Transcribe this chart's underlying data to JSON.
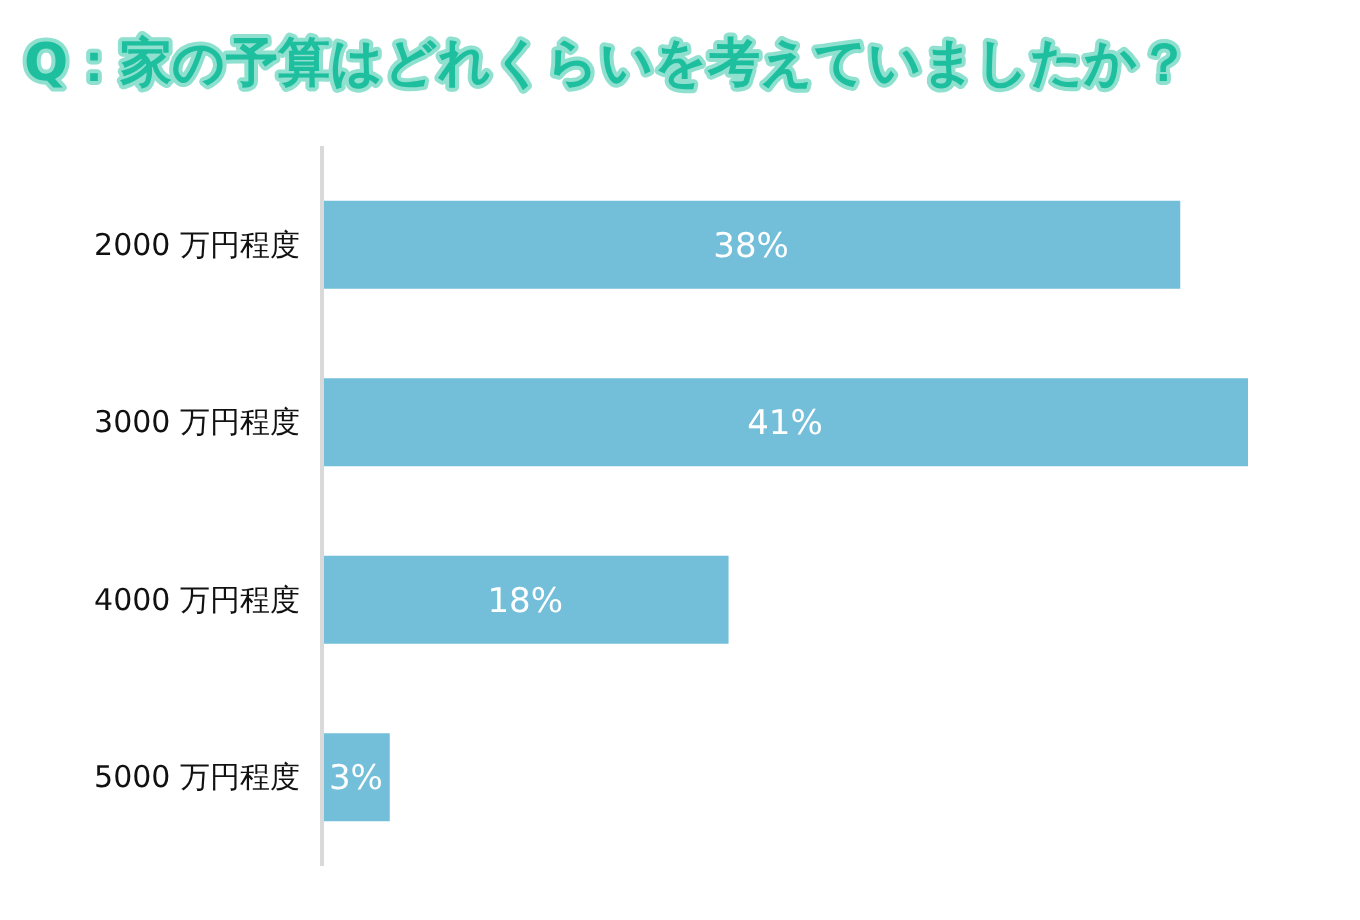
{
  "chart_data": {
    "type": "bar",
    "orientation": "horizontal",
    "title": "Q：家の予算はどれくらいを考えていましたか？",
    "categories": [
      "2000 万円程度",
      "3000 万円程度",
      "4000 万円程度",
      "5000 万円程度"
    ],
    "values": [
      38,
      41,
      18,
      3
    ],
    "color": "#73bed9",
    "value_labels": [
      "38%",
      "41%",
      "18%",
      "3%"
    ]
  }
}
